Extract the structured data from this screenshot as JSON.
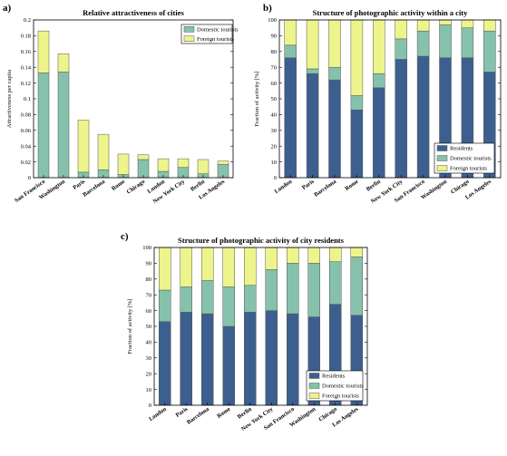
{
  "colors": {
    "residents": "#3d5f8f",
    "domestic": "#86c2ab",
    "foreign": "#eef48c",
    "stroke": "#555555"
  },
  "chart_data": [
    {
      "id": "a",
      "panel_letter": "a)",
      "type": "bar",
      "stacked": true,
      "title": "Relative attractiveness of cities",
      "xlabel": "",
      "ylabel": "Attractiveness per capita",
      "ylim": [
        0,
        0.2
      ],
      "yticks": [
        "0",
        "0.02",
        "0.04",
        "0.06",
        "0.08",
        "0.1",
        "0.12",
        "0.14",
        "0.16",
        "0.18",
        "0.2"
      ],
      "categories": [
        "San Francisco",
        "Washington",
        "Paris",
        "Barcelona",
        "Rome",
        "Chicago",
        "London",
        "New York City",
        "Berlin",
        "Los Angeles"
      ],
      "series": [
        {
          "name": "Domestic tourists",
          "color_key": "domestic",
          "values": [
            0.133,
            0.134,
            0.007,
            0.01,
            0.004,
            0.023,
            0.008,
            0.013,
            0.005,
            0.017
          ]
        },
        {
          "name": "Foreign tourists",
          "color_key": "foreign",
          "values": [
            0.053,
            0.023,
            0.066,
            0.045,
            0.026,
            0.006,
            0.016,
            0.011,
            0.018,
            0.004
          ]
        }
      ],
      "legend_position": "top-right"
    },
    {
      "id": "b",
      "panel_letter": "b)",
      "type": "bar",
      "stacked": true,
      "title": "Structure of photographic activity within a city",
      "xlabel": "",
      "ylabel": "Fraction of activity [%]",
      "ylim": [
        0,
        100
      ],
      "yticks": [
        "0",
        "10",
        "20",
        "30",
        "40",
        "50",
        "60",
        "70",
        "80",
        "90",
        "100"
      ],
      "categories": [
        "London",
        "Paris",
        "Barcelona",
        "Rome",
        "Berlin",
        "New York City",
        "San Francisco",
        "Washington",
        "Chicago",
        "Los Angeles"
      ],
      "series": [
        {
          "name": "Residents",
          "color_key": "residents",
          "values": [
            76,
            66,
            62,
            43,
            57,
            75,
            77,
            76,
            76,
            67
          ]
        },
        {
          "name": "Domestic tourists",
          "color_key": "domestic",
          "values": [
            8,
            3,
            8,
            9,
            9,
            13,
            16,
            21,
            19,
            26
          ]
        },
        {
          "name": "Foreign tourists",
          "color_key": "foreign",
          "values": [
            16,
            31,
            30,
            48,
            34,
            12,
            7,
            3,
            5,
            7
          ]
        }
      ],
      "legend_position": "bottom-right"
    },
    {
      "id": "c",
      "panel_letter": "c)",
      "type": "bar",
      "stacked": true,
      "title": "Structure of photographic activity of city residents",
      "xlabel": "",
      "ylabel": "Fraction of activity [%]",
      "ylim": [
        0,
        100
      ],
      "yticks": [
        "0",
        "10",
        "20",
        "30",
        "40",
        "50",
        "60",
        "70",
        "80",
        "90",
        "100"
      ],
      "categories": [
        "London",
        "Paris",
        "Barcelona",
        "Rome",
        "Berlin",
        "New York City",
        "San Francisco",
        "Washington",
        "Chicago",
        "Los Angeles"
      ],
      "series": [
        {
          "name": "Residents",
          "color_key": "residents",
          "values": [
            53,
            59,
            58,
            50,
            59,
            60,
            58,
            56,
            64,
            57
          ]
        },
        {
          "name": "Domestic tourists",
          "color_key": "domestic",
          "values": [
            20,
            16,
            21,
            25,
            17,
            26,
            32,
            34,
            27,
            37
          ]
        },
        {
          "name": "Foreign tourists",
          "color_key": "foreign",
          "values": [
            27,
            25,
            21,
            25,
            24,
            14,
            10,
            10,
            9,
            6
          ]
        }
      ],
      "legend_position": "bottom-right"
    }
  ]
}
